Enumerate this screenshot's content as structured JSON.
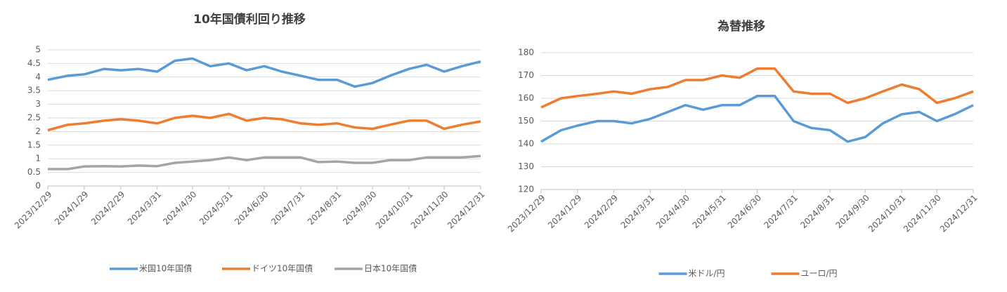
{
  "chart_data": [
    {
      "type": "line",
      "title": "10年国債利回り推移",
      "x": [
        "2023/12/29",
        "2024/1/15",
        "2024/1/29",
        "2024/2/15",
        "2024/2/29",
        "2024/3/15",
        "2024/3/31",
        "2024/4/15",
        "2024/4/30",
        "2024/5/15",
        "2024/5/31",
        "2024/6/15",
        "2024/6/30",
        "2024/7/15",
        "2024/7/31",
        "2024/8/15",
        "2024/8/31",
        "2024/9/15",
        "2024/9/30",
        "2024/10/15",
        "2024/10/31",
        "2024/11/15",
        "2024/11/30",
        "2024/12/15",
        "2024/12/31"
      ],
      "series": [
        {
          "name": "米国10年国債",
          "color": "#5b9bd5",
          "values": [
            3.9,
            4.05,
            4.1,
            4.3,
            4.25,
            4.3,
            4.2,
            4.6,
            4.68,
            4.4,
            4.5,
            4.25,
            4.4,
            4.2,
            4.05,
            3.9,
            3.9,
            3.65,
            3.78,
            4.05,
            4.3,
            4.45,
            4.2,
            4.4,
            4.57
          ]
        },
        {
          "name": "ドイツ10年国債",
          "color": "#ed7d31",
          "values": [
            2.05,
            2.25,
            2.3,
            2.4,
            2.45,
            2.4,
            2.3,
            2.5,
            2.58,
            2.5,
            2.65,
            2.4,
            2.5,
            2.45,
            2.3,
            2.25,
            2.3,
            2.15,
            2.1,
            2.25,
            2.4,
            2.4,
            2.1,
            2.25,
            2.37
          ]
        },
        {
          "name": "日本10年国債",
          "color": "#a5a5a5",
          "values": [
            0.62,
            0.62,
            0.72,
            0.73,
            0.72,
            0.75,
            0.73,
            0.85,
            0.9,
            0.95,
            1.05,
            0.95,
            1.05,
            1.05,
            1.05,
            0.88,
            0.9,
            0.85,
            0.85,
            0.95,
            0.95,
            1.05,
            1.05,
            1.05,
            1.1
          ]
        }
      ],
      "xlim": [
        "2023/12/29",
        "2024/12/31"
      ],
      "xticks": [
        "2023/12/29",
        "2024/1/29",
        "2024/2/29",
        "2024/3/31",
        "2024/4/30",
        "2024/5/31",
        "2024/6/30",
        "2024/7/31",
        "2024/8/31",
        "2024/9/30",
        "2024/10/31",
        "2024/11/30",
        "2024/12/31"
      ],
      "ylim": [
        0,
        5
      ],
      "yticks": [
        0,
        0.5,
        1,
        1.5,
        2,
        2.5,
        3,
        3.5,
        4,
        4.5,
        5
      ],
      "grid": true,
      "legend": "bottom"
    },
    {
      "type": "line",
      "title": "為替推移",
      "x": [
        "2023/12/29",
        "2024/1/15",
        "2024/1/29",
        "2024/2/15",
        "2024/2/29",
        "2024/3/15",
        "2024/3/31",
        "2024/4/15",
        "2024/4/30",
        "2024/5/15",
        "2024/5/31",
        "2024/6/15",
        "2024/6/30",
        "2024/7/15",
        "2024/7/31",
        "2024/8/15",
        "2024/8/31",
        "2024/9/15",
        "2024/9/30",
        "2024/10/15",
        "2024/10/31",
        "2024/11/15",
        "2024/11/30",
        "2024/12/15",
        "2024/12/31"
      ],
      "series": [
        {
          "name": "米ドル/円",
          "color": "#5b9bd5",
          "values": [
            141,
            146,
            148,
            150,
            150,
            149,
            151,
            154,
            157,
            155,
            157,
            157,
            161,
            161,
            150,
            147,
            146,
            141,
            143,
            149,
            153,
            154,
            150,
            153,
            157
          ]
        },
        {
          "name": "ユーロ/円",
          "color": "#ed7d31",
          "values": [
            156,
            160,
            161,
            162,
            163,
            162,
            164,
            165,
            168,
            168,
            170,
            169,
            173,
            173,
            163,
            162,
            162,
            158,
            160,
            163,
            166,
            164,
            158,
            160,
            163
          ]
        }
      ],
      "xlim": [
        "2023/12/29",
        "2024/12/31"
      ],
      "xticks": [
        "2023/12/29",
        "2024/1/29",
        "2024/2/29",
        "2024/3/31",
        "2024/4/30",
        "2024/5/31",
        "2024/6/30",
        "2024/7/31",
        "2024/8/31",
        "2024/9/30",
        "2024/10/31",
        "2024/11/30",
        "2024/12/31"
      ],
      "ylim": [
        120,
        180
      ],
      "yticks": [
        120,
        130,
        140,
        150,
        160,
        170,
        180
      ],
      "grid": true,
      "legend": "bottom"
    }
  ]
}
